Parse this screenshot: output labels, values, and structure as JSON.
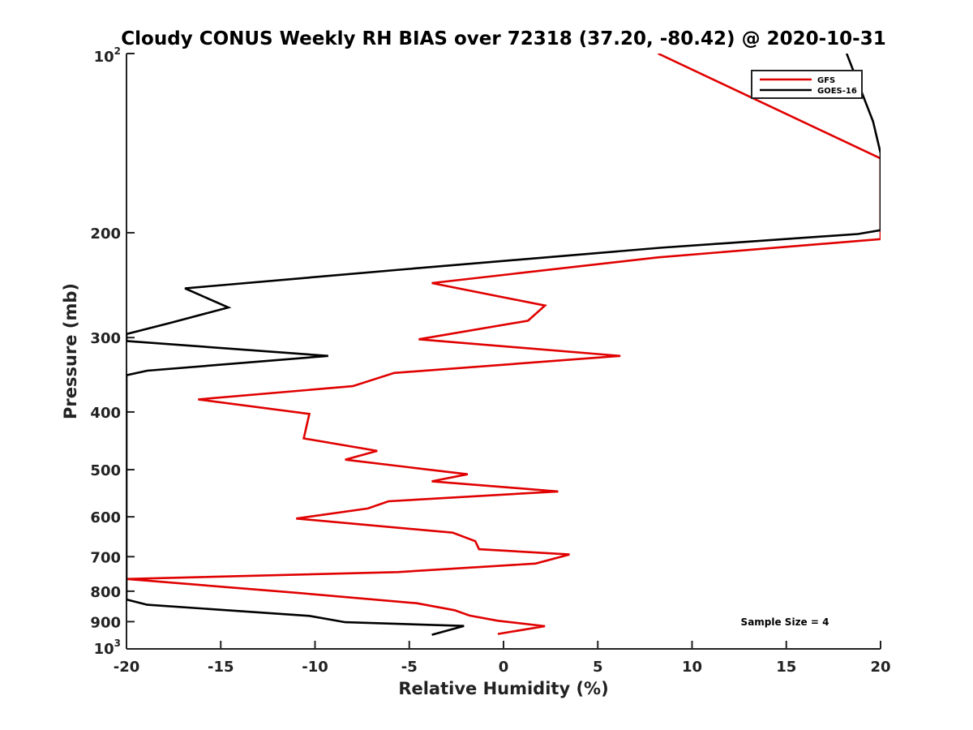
{
  "chart_data": {
    "type": "line",
    "title": "Cloudy CONUS Weekly RH BIAS over 72318 (37.20, -80.42) @ 2020-10-31",
    "xlabel": "Relative Humidity (%)",
    "ylabel": "Pressure (mb)",
    "xlim": [
      -20,
      20
    ],
    "ylim": [
      1000,
      100
    ],
    "yscale": "log",
    "x_ticks": [
      -20,
      -15,
      -10,
      -5,
      0,
      5,
      10,
      15,
      20
    ],
    "x_tick_labels": [
      "-20",
      "-15",
      "-10",
      "-5",
      "0",
      "5",
      "10",
      "15",
      "20"
    ],
    "y_ticks": [
      {
        "value": 100,
        "label": "10",
        "sup": "2"
      },
      {
        "value": 200,
        "label": "200"
      },
      {
        "value": 300,
        "label": "300"
      },
      {
        "value": 400,
        "label": "400"
      },
      {
        "value": 500,
        "label": "500"
      },
      {
        "value": 600,
        "label": "600"
      },
      {
        "value": 700,
        "label": "700"
      },
      {
        "value": 800,
        "label": "800"
      },
      {
        "value": 900,
        "label": "900"
      },
      {
        "value": 1000,
        "label": "10",
        "sup": "3"
      }
    ],
    "legend_position": "top-right",
    "series": [
      {
        "name": "GFS",
        "color": "#e00000",
        "points": [
          [
            8.2,
            100
          ],
          [
            20,
            150
          ],
          [
            20,
            205
          ],
          [
            8.2,
            220
          ],
          [
            -3.8,
            243
          ],
          [
            2.2,
            265
          ],
          [
            1.3,
            281
          ],
          [
            -4.5,
            302
          ],
          [
            6.2,
            322
          ],
          [
            -5.8,
            344
          ],
          [
            -8.0,
            362
          ],
          [
            -16.2,
            381
          ],
          [
            -10.3,
            403
          ],
          [
            -10.6,
            443
          ],
          [
            -6.7,
            465
          ],
          [
            -8.4,
            481
          ],
          [
            -1.9,
            509
          ],
          [
            -3.8,
            523
          ],
          [
            2.9,
            544
          ],
          [
            -6.1,
            565
          ],
          [
            -7.2,
            581
          ],
          [
            -11.0,
            604
          ],
          [
            -2.7,
            638
          ],
          [
            -1.5,
            659
          ],
          [
            -1.3,
            680
          ],
          [
            3.5,
            694
          ],
          [
            1.7,
            719
          ],
          [
            -5.6,
            743
          ],
          [
            -20,
            763
          ],
          [
            -10.8,
            806
          ],
          [
            -4.6,
            838
          ],
          [
            -2.6,
            861
          ],
          [
            -1.8,
            879
          ],
          [
            -0.3,
            897
          ],
          [
            2.2,
            916
          ],
          [
            -0.3,
            944
          ]
        ]
      },
      {
        "name": "GOES-16",
        "color": "#000000",
        "points": [
          [
            18.2,
            100
          ],
          [
            19.6,
            130
          ],
          [
            20,
            147
          ],
          [
            20,
            198
          ],
          [
            18.8,
            201
          ],
          [
            8.3,
            212
          ],
          [
            -5.0,
            230
          ],
          [
            -16.9,
            248
          ],
          [
            -14.6,
            267
          ],
          [
            -17.6,
            283
          ],
          [
            -20,
            296
          ],
          [
            -20,
            304
          ],
          [
            -9.3,
            322
          ],
          [
            -18.9,
            341
          ],
          [
            -20,
            347
          ],
          [
            -20,
            826
          ],
          [
            -18.9,
            843
          ],
          [
            -10.3,
            880
          ],
          [
            -8.4,
            902
          ],
          [
            -2.1,
            915
          ],
          [
            -3.8,
            947
          ]
        ]
      }
    ],
    "annotation": "Sample Size = 4"
  }
}
